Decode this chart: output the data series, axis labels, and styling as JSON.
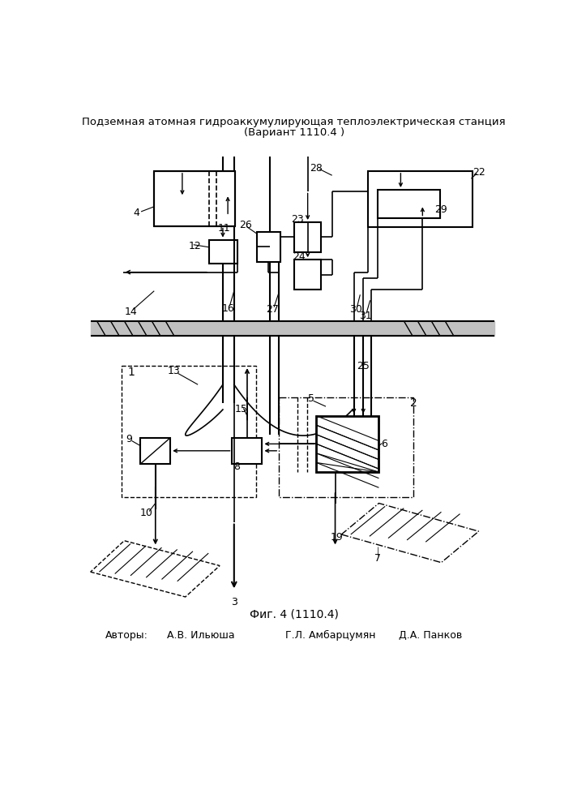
{
  "title_line1": "Подземная атомная гидроаккумулирующая теплоэлектрическая станция",
  "title_line2": "(Вариант 1110.4 )",
  "fig_caption": "Фиг. 4 (1110.4)",
  "authors_label": "Авторы:",
  "author1": "А.В. Ильюша",
  "author2": "Г.Л. Амбарцумян",
  "author3": "Д.А. Панков",
  "bg_color": "#ffffff",
  "line_color": "#000000"
}
